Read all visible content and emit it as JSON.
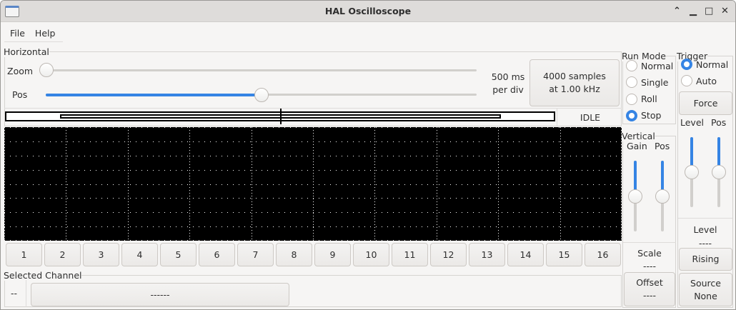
{
  "window": {
    "title": "HAL Oscilloscope"
  },
  "menu": {
    "file": "File",
    "help": "Help"
  },
  "horizontal": {
    "legend": "Horizontal",
    "zoom_label": "Zoom",
    "zoom_value": 0,
    "pos_label": "Pos",
    "pos_value": 0.5,
    "per_div_value": "500 ms",
    "per_div_unit": "per div",
    "samples_line1": "4000 samples",
    "samples_line2": "at 1.00 kHz",
    "status": "IDLE"
  },
  "scope": {
    "background": "#000000",
    "divisions_x": 10,
    "divisions_y": 8
  },
  "channels": [
    "1",
    "2",
    "3",
    "4",
    "5",
    "6",
    "7",
    "8",
    "9",
    "10",
    "11",
    "12",
    "13",
    "14",
    "15",
    "16"
  ],
  "selected_channel": {
    "legend": "Selected Channel",
    "number": "--",
    "name": "------"
  },
  "run_mode": {
    "legend": "Run Mode",
    "options": [
      "Normal",
      "Single",
      "Roll",
      "Stop"
    ],
    "selected": "Stop"
  },
  "vertical": {
    "legend": "Vertical",
    "gain_label": "Gain",
    "pos_label": "Pos",
    "gain_value": 0.5,
    "pos_value": 0.5,
    "scale_label": "Scale",
    "scale_value": "----",
    "offset_label": "Offset",
    "offset_value": "----"
  },
  "trigger": {
    "legend": "Trigger",
    "options": [
      "Normal",
      "Auto"
    ],
    "selected": "Normal",
    "force": "Force",
    "level_label": "Level",
    "pos_label": "Pos",
    "level_value": 0.5,
    "pos_value": 0.5,
    "level_title": "Level",
    "level_readout": "----",
    "edge": "Rising",
    "source_label": "Source",
    "source_value": "None"
  },
  "colors": {
    "accent": "#3584e4"
  }
}
